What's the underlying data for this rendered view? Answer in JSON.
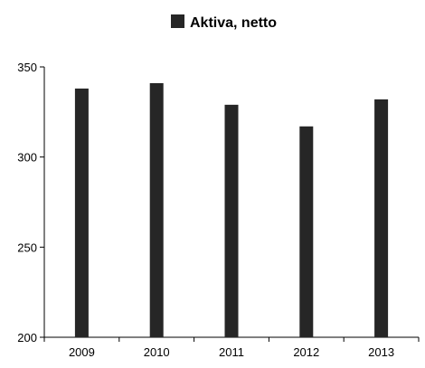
{
  "chart_data": {
    "type": "bar",
    "categories": [
      "2009",
      "2010",
      "2011",
      "2012",
      "2013"
    ],
    "series": [
      {
        "name": "Aktiva, netto",
        "values": [
          338,
          341,
          329,
          317,
          332
        ],
        "color": "#262626"
      }
    ],
    "title": "",
    "xlabel": "",
    "ylabel": "",
    "ylim": [
      200,
      350
    ],
    "yticks": [
      200,
      250,
      300,
      350
    ],
    "grid": false,
    "legend_position": "top"
  }
}
